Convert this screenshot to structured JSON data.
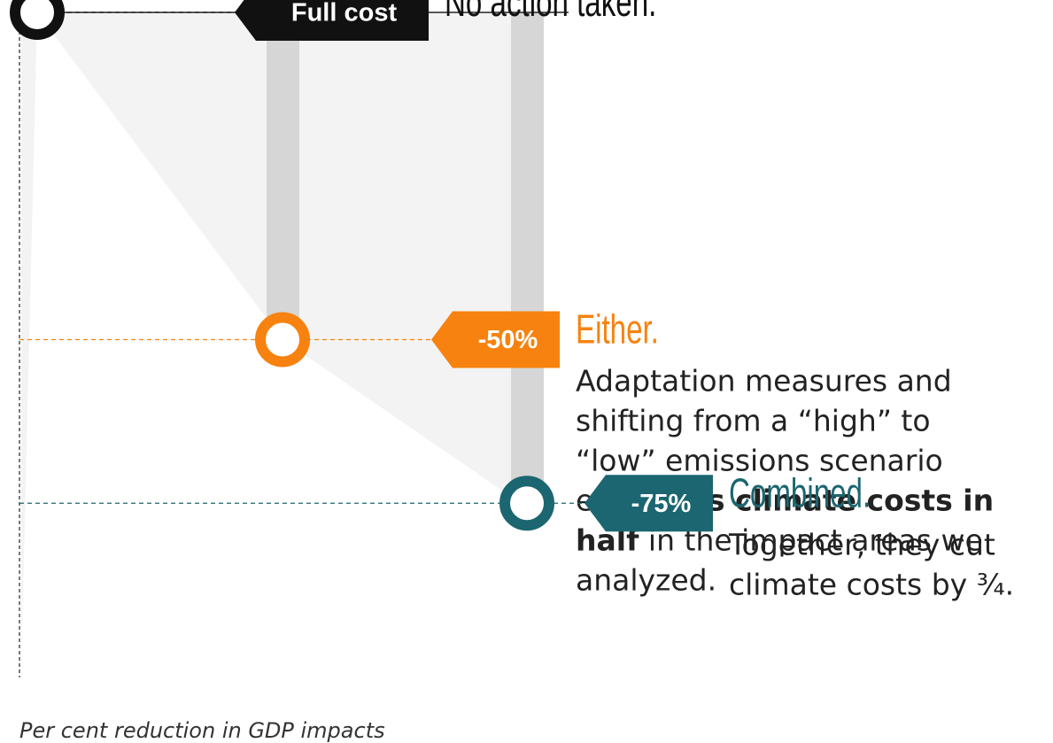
{
  "chart_data": {
    "type": "dot",
    "categories": [
      null,
      null,
      null
    ],
    "values": [
      0,
      -50,
      -75
    ],
    "value_labels": [
      "Full cost",
      "-50%",
      "-75%"
    ],
    "colors": [
      "#111111",
      "#f7820f",
      "#1b6670"
    ],
    "headings": [
      "No action taken.",
      "Either.",
      "Combined."
    ],
    "descriptions": [
      [],
      [
        [
          {
            "text": "Adaptation measures and",
            "bold": false
          }
        ],
        [
          {
            "text": "shifting from a “high” to",
            "bold": false
          }
        ],
        [
          {
            "text": "“low” emissions scenario",
            "bold": false
          }
        ],
        [
          {
            "text": "each ",
            "bold": false
          },
          {
            "text": "cuts climate costs in",
            "bold": true
          }
        ],
        [
          {
            "text": "half",
            "bold": true
          },
          {
            "text": " in the impact areas we",
            "bold": false
          }
        ],
        [
          {
            "text": "analyzed.",
            "bold": false
          }
        ]
      ],
      [
        [
          {
            "text": "Together, they cut",
            "bold": false
          }
        ],
        [
          {
            "text": "climate costs by ¾.",
            "bold": false
          }
        ]
      ]
    ],
    "ylim": [
      -100,
      0
    ],
    "y_label": "Per cent reduction in GDP impacts"
  }
}
